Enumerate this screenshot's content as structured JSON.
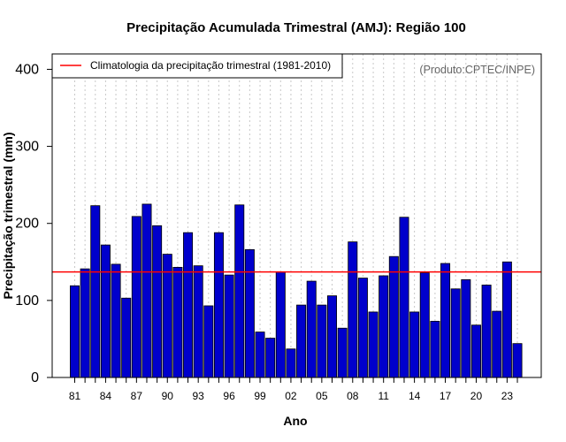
{
  "chart_data": {
    "type": "bar",
    "title": "Precipitação Acumulada Trimestral (AMJ): Região 100",
    "xlabel": "Ano",
    "ylabel": "Precipitação trimestral (mm)",
    "ylim": [
      0,
      420
    ],
    "yticks": [
      0,
      100,
      200,
      300,
      400
    ],
    "grid": "vertical dotted",
    "credit": "(Produto:CPTEC/INPE)",
    "categories": [
      "81",
      "82",
      "83",
      "84",
      "85",
      "86",
      "87",
      "88",
      "89",
      "90",
      "91",
      "92",
      "93",
      "94",
      "95",
      "96",
      "97",
      "98",
      "99",
      "00",
      "01",
      "02",
      "03",
      "04",
      "05",
      "06",
      "07",
      "08",
      "09",
      "10",
      "11",
      "12",
      "13",
      "14",
      "15",
      "16",
      "17",
      "18",
      "19",
      "20",
      "21",
      "22",
      "23",
      "24"
    ],
    "xtick_labels": [
      "81",
      "84",
      "87",
      "90",
      "93",
      "96",
      "99",
      "02",
      "05",
      "08",
      "11",
      "14",
      "17",
      "20",
      "23"
    ],
    "values": [
      119,
      141,
      223,
      172,
      147,
      103,
      209,
      225,
      197,
      160,
      143,
      188,
      145,
      93,
      188,
      133,
      224,
      166,
      59,
      51,
      137,
      37,
      94,
      125,
      94,
      106,
      64,
      176,
      129,
      85,
      132,
      157,
      208,
      85,
      136,
      73,
      148,
      115,
      127,
      68,
      120,
      86,
      150,
      44
    ],
    "series": [
      {
        "name": "Precipitação trimestral",
        "color": "#0000cc"
      }
    ],
    "reference_line": {
      "name": "Climatologia da precipitação trimestral (1981-2010)",
      "value": 137,
      "color": "#ff0000"
    },
    "legend_position": "top-left"
  }
}
